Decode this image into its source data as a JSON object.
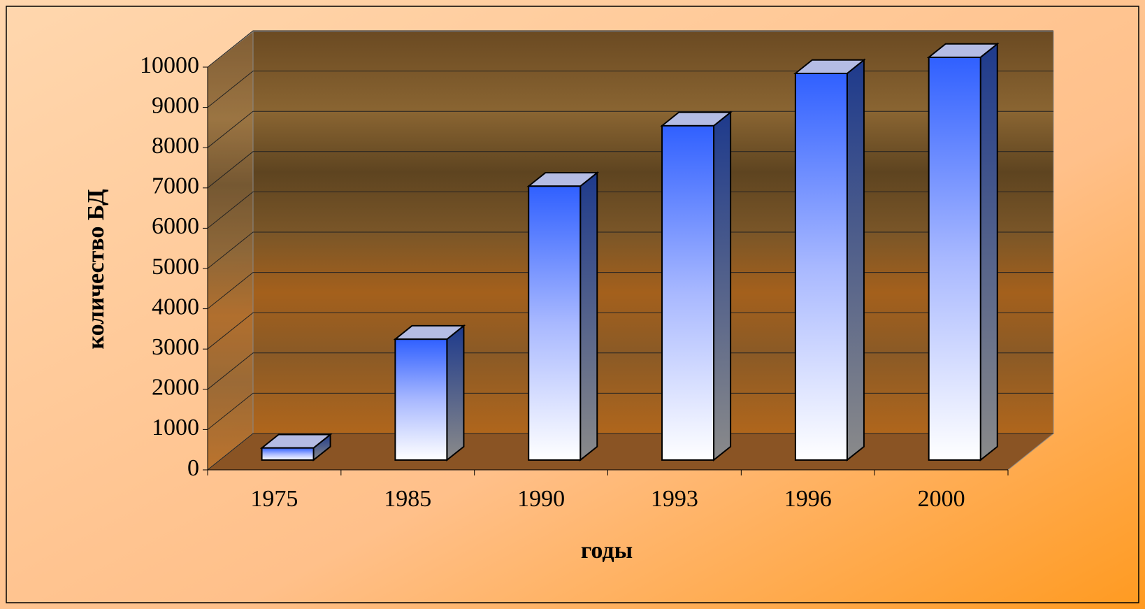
{
  "chart_data": {
    "type": "bar3d",
    "categories": [
      "1975",
      "1985",
      "1990",
      "1993",
      "1996",
      "2000"
    ],
    "values": [
      300,
      3000,
      6800,
      8300,
      9600,
      10000
    ],
    "color": "#3366ff",
    "ylabel": "количество БД",
    "xlabel": "годы",
    "ylim": [
      0,
      10000
    ],
    "yticks": [
      0,
      1000,
      2000,
      3000,
      4000,
      5000,
      6000,
      7000,
      8000,
      9000,
      10000
    ],
    "grid": true
  }
}
